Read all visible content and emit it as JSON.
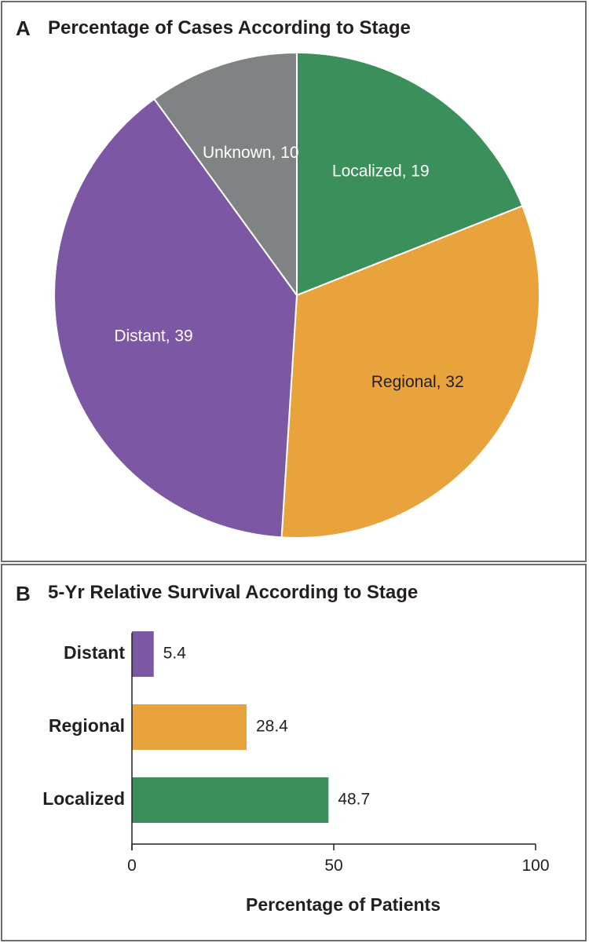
{
  "chart_data": [
    {
      "type": "pie",
      "panel": "A",
      "title": "Percentage of Cases According to Stage",
      "labels": [
        "Localized",
        "Regional",
        "Distant",
        "Unknown"
      ],
      "values": [
        19,
        32,
        39,
        10
      ],
      "slice_labels": [
        "Localized, 19",
        "Regional, 32",
        "Distant, 39",
        "Unknown, 10"
      ],
      "colors": [
        "#3a8f5b",
        "#e8a33d",
        "#7b57a4",
        "#808384"
      ],
      "label_colors": [
        "#ffffff",
        "#231f20",
        "#ffffff",
        "#ffffff"
      ],
      "start": "12 o'clock",
      "direction": "clockwise"
    },
    {
      "type": "bar",
      "orientation": "horizontal",
      "panel": "B",
      "title": "5-Yr Relative Survival According to Stage",
      "categories": [
        "Distant",
        "Regional",
        "Localized"
      ],
      "values": [
        5.4,
        28.4,
        48.7
      ],
      "value_labels": [
        "5.4",
        "28.4",
        "48.7"
      ],
      "colors": [
        "#7b57a4",
        "#e8a33d",
        "#3a8f5b"
      ],
      "xlabel": "Percentage of Patients",
      "ylabel": "",
      "xlim": [
        0,
        100
      ],
      "xticks": [
        0,
        50,
        100
      ],
      "xtick_labels": [
        "0",
        "50",
        "100"
      ],
      "grid": false
    }
  ]
}
